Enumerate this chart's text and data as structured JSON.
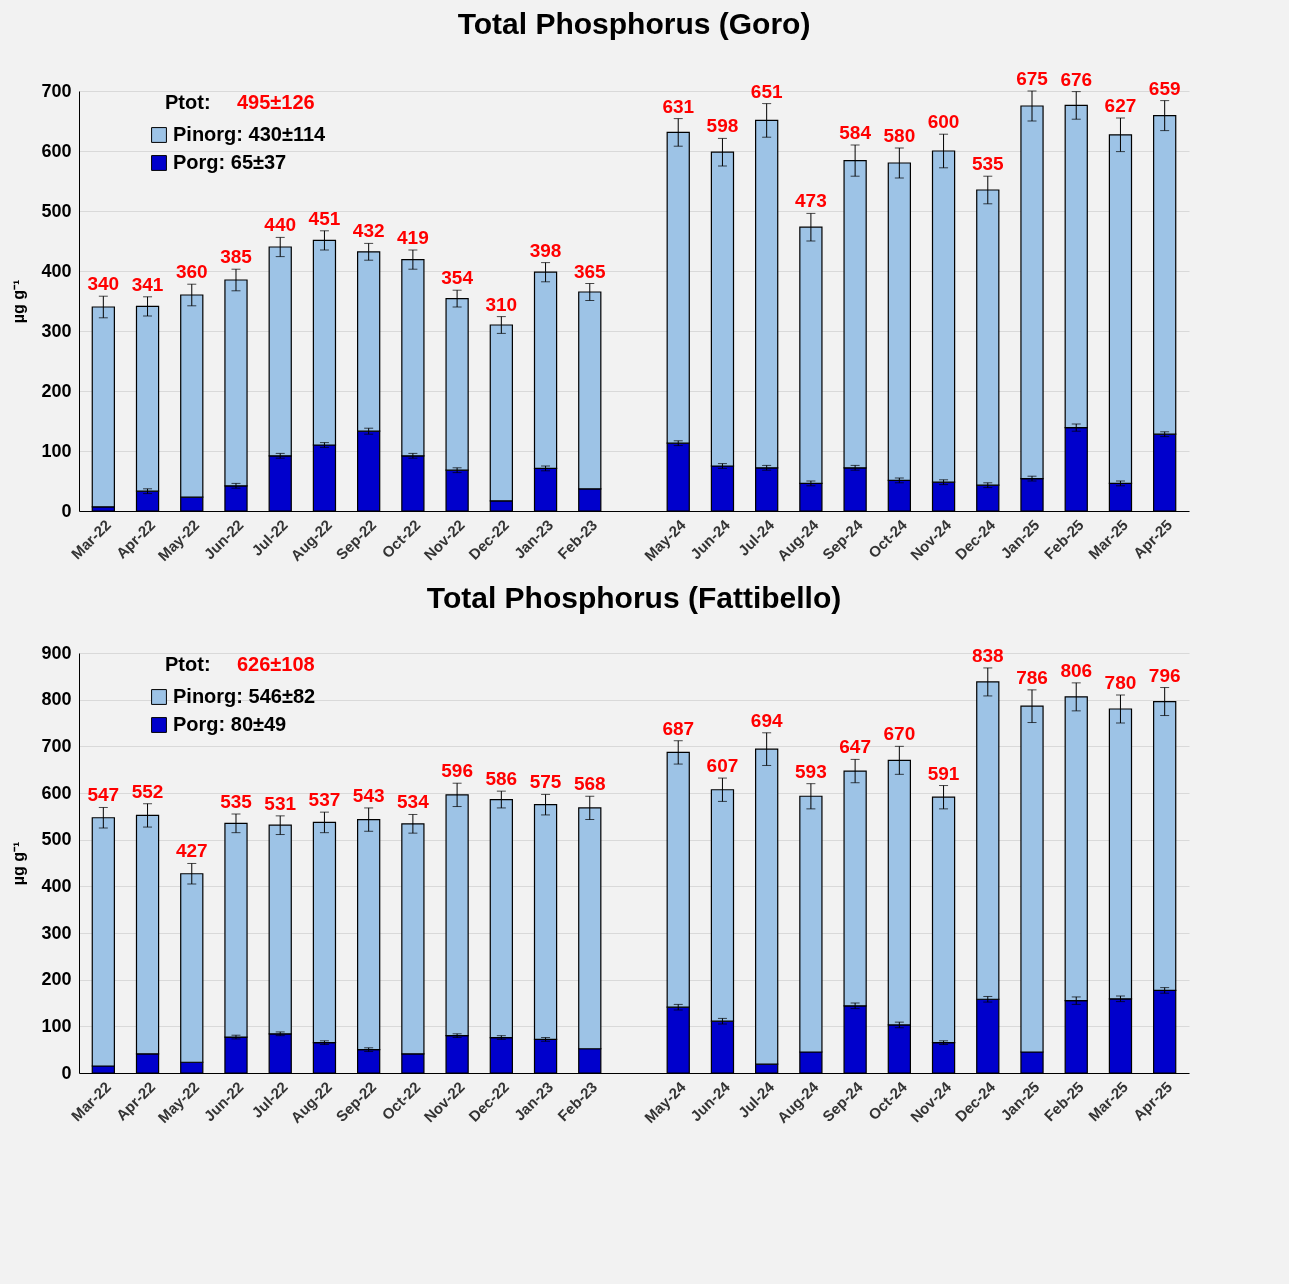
{
  "chart_data": [
    {
      "type": "bar",
      "title": "Total Phosphorus (Goro)",
      "ylabel": "µg g⁻¹",
      "stacked": true,
      "legend": "top left",
      "grid": "y",
      "annotations": [
        "Ptot: 495±126"
      ],
      "categories": [
        "Mar-22",
        "Apr-22",
        "May-22",
        "Jun-22",
        "Jul-22",
        "Aug-22",
        "Sep-22",
        "Oct-22",
        "Nov-22",
        "Dec-22",
        "Jan-23",
        "Feb-23",
        null,
        "May-24",
        "Jun-24",
        "Jul-24",
        "Aug-24",
        "Sep-24",
        "Oct-24",
        "Nov-24",
        "Dec-24",
        "Jan-25",
        "Feb-25",
        "Mar-25",
        "Apr-25"
      ],
      "series": [
        {
          "name": "Porg: 65±37",
          "color": "#0000cc",
          "values": [
            7,
            33,
            23,
            42,
            92,
            110,
            133,
            92,
            68,
            17,
            71,
            37,
            null,
            113,
            75,
            72,
            46,
            72,
            51,
            48,
            43,
            54,
            139,
            46,
            128
          ],
          "errors": [
            null,
            4,
            null,
            4,
            4,
            4,
            5,
            4,
            4,
            null,
            4,
            null,
            null,
            4,
            4,
            4,
            4,
            4,
            4,
            4,
            4,
            4,
            6,
            4,
            4
          ]
        },
        {
          "name": "Pinorg: 430±114",
          "color": "#9dc3e6",
          "values": [
            333,
            308,
            337,
            343,
            348,
            341,
            299,
            327,
            286,
            293,
            327,
            328,
            null,
            518,
            523,
            579,
            427,
            512,
            529,
            552,
            492,
            621,
            537,
            581,
            531
          ],
          "errors": [
            18,
            16,
            18,
            18,
            16,
            16,
            14,
            16,
            14,
            14,
            16,
            14,
            null,
            23,
            23,
            28,
            23,
            26,
            25,
            28,
            23,
            25,
            23,
            28,
            25
          ]
        }
      ],
      "totals": [
        "340",
        "341",
        "360",
        "385",
        "440",
        "451",
        "432",
        "419",
        "354",
        "310",
        "398",
        "365",
        null,
        "631",
        "598",
        "651",
        "473",
        "584",
        "580",
        "600",
        "535",
        "675",
        "676",
        "627",
        "659"
      ],
      "ylim": [
        0,
        700
      ],
      "yticks": [
        0,
        100,
        200,
        300,
        400,
        500,
        600,
        700
      ]
    },
    {
      "type": "bar",
      "title": "Total Phosphorus (Fattibello)",
      "ylabel": "µg g⁻¹",
      "stacked": true,
      "legend": "top left",
      "grid": "y",
      "annotations": [
        "Ptot: 626±108"
      ],
      "categories": [
        "Mar-22",
        "Apr-22",
        "May-22",
        "Jun-22",
        "Jul-22",
        "Aug-22",
        "Sep-22",
        "Oct-22",
        "Nov-22",
        "Dec-22",
        "Jan-23",
        "Feb-23",
        null,
        "May-24",
        "Jun-24",
        "Jul-24",
        "Aug-24",
        "Sep-24",
        "Oct-24",
        "Nov-24",
        "Dec-24",
        "Jan-25",
        "Feb-25",
        "Mar-25",
        "Apr-25"
      ],
      "series": [
        {
          "name": "Porg: 80±49",
          "color": "#0000cc",
          "values": [
            15,
            41,
            23,
            77,
            84,
            65,
            50,
            41,
            80,
            76,
            72,
            52,
            null,
            141,
            111,
            19,
            45,
            144,
            103,
            65,
            158,
            45,
            155,
            159,
            177
          ],
          "errors": [
            null,
            null,
            null,
            4,
            4,
            4,
            4,
            null,
            4,
            4,
            4,
            null,
            null,
            6,
            6,
            null,
            null,
            6,
            6,
            4,
            6,
            null,
            8,
            6,
            6
          ]
        },
        {
          "name": "Pinorg: 546±82",
          "color": "#9dc3e6",
          "values": [
            532,
            511,
            404,
            458,
            447,
            472,
            493,
            493,
            516,
            510,
            503,
            516,
            null,
            546,
            496,
            675,
            548,
            503,
            567,
            526,
            680,
            741,
            651,
            621,
            619
          ],
          "errors": [
            22,
            25,
            22,
            20,
            20,
            22,
            25,
            20,
            25,
            18,
            22,
            25,
            null,
            25,
            25,
            35,
            27,
            25,
            30,
            25,
            30,
            35,
            30,
            30,
            30
          ]
        }
      ],
      "totals": [
        "547",
        "552",
        "427",
        "535",
        "531",
        "537",
        "543",
        "534",
        "596",
        "586",
        "575",
        "568",
        null,
        "687",
        "607",
        "694",
        "593",
        "647",
        "670",
        "591",
        "838",
        "786",
        "806",
        "780",
        "796"
      ],
      "ylim": [
        0,
        900
      ],
      "yticks": [
        0,
        100,
        200,
        300,
        400,
        500,
        600,
        700,
        800,
        900
      ]
    }
  ]
}
